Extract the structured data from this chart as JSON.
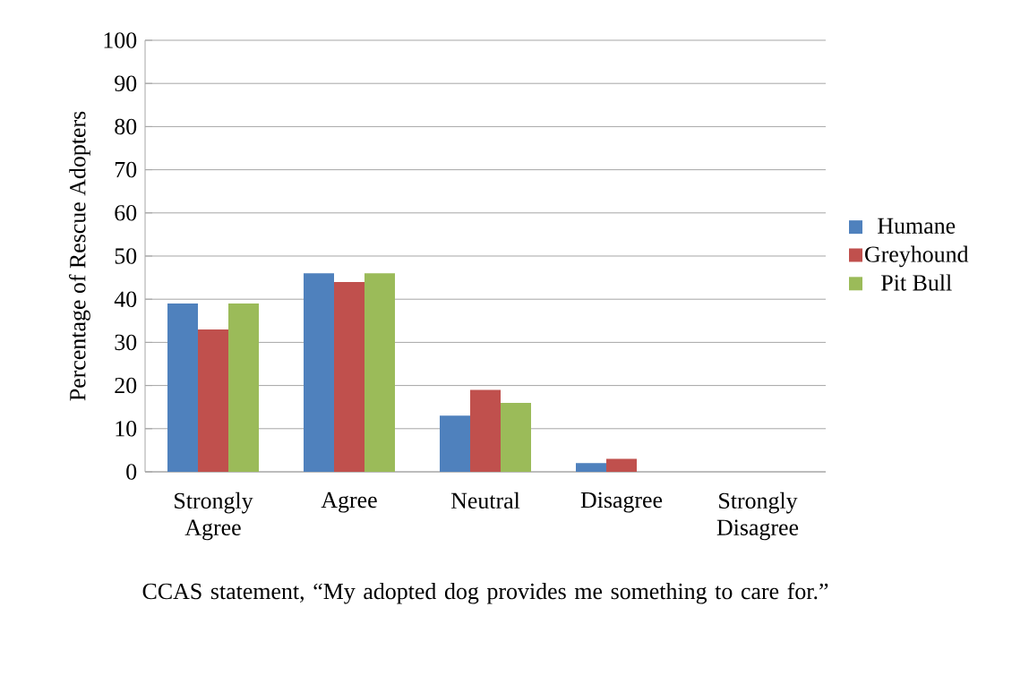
{
  "chart_data": {
    "type": "bar",
    "xlabel": "CCAS statement, “My adopted dog provides me something to care for.”",
    "ylabel": "Percentage of Rescue Adopters",
    "categories": [
      "Strongly Agree",
      "Agree",
      "Neutral",
      "Disagree",
      "Strongly Disagree"
    ],
    "series": [
      {
        "name": "Humane",
        "color": "#4f81bd",
        "values": [
          39,
          46,
          13,
          2,
          0
        ]
      },
      {
        "name": "Greyhound",
        "color": "#c0504d",
        "values": [
          33,
          44,
          19,
          3,
          0
        ]
      },
      {
        "name": "Pit Bull",
        "color": "#9bbb59",
        "values": [
          39,
          46,
          16,
          0,
          0
        ]
      }
    ],
    "ylim": [
      0,
      100
    ],
    "yticks": [
      0,
      10,
      20,
      30,
      40,
      50,
      60,
      70,
      80,
      90,
      100
    ],
    "grid": "y",
    "legend": "right"
  }
}
